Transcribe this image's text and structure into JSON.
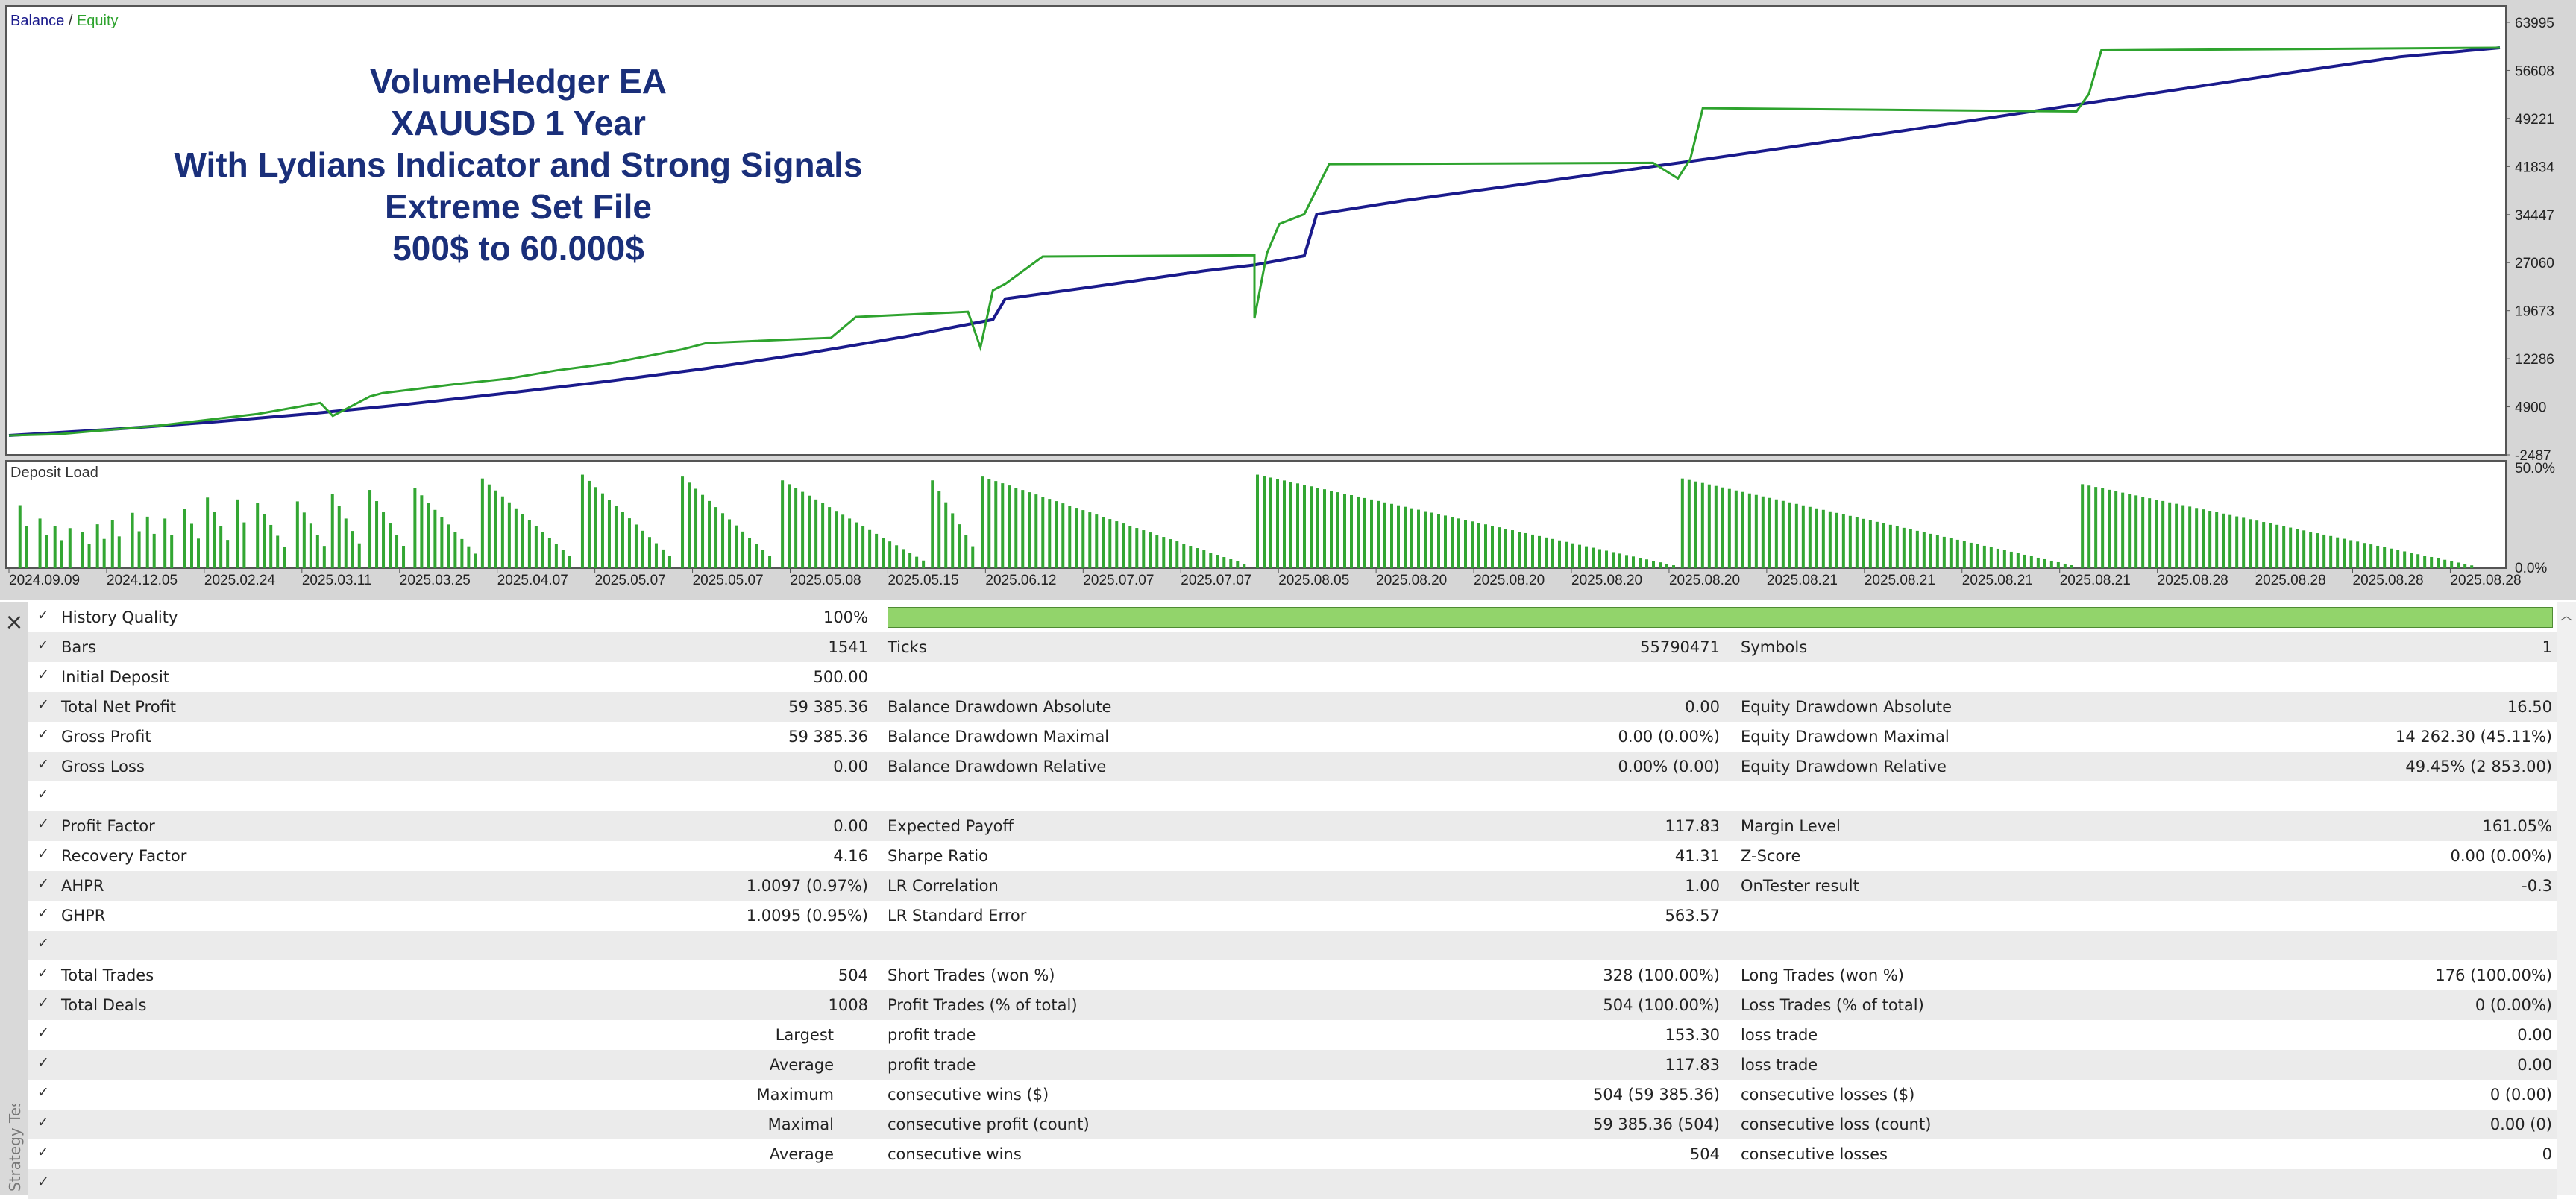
{
  "chart": {
    "legend_balance": "Balance",
    "legend_separator": " / ",
    "legend_equity": "Equity",
    "title_lines": [
      "VolumeHedger EA",
      "XAUUSD 1 Year",
      "With Lydians Indicator and Strong Signals",
      "Extreme Set File",
      "500$ to 60.000$"
    ],
    "deposit_label": "Deposit Load",
    "colors": {
      "balance": "#1a1a8c",
      "equity": "#2ea32e",
      "title": "#1a2f7a",
      "load": "#33a633"
    }
  },
  "chart_data": {
    "type": "line",
    "title": "",
    "y_ticks": [
      "63995",
      "56608",
      "49221",
      "41834",
      "34447",
      "27060",
      "19673",
      "12286",
      "4900",
      "-2487"
    ],
    "ylim": [
      -2487,
      63995
    ],
    "load_ticks": [
      "50.0%",
      "0.0%"
    ],
    "x_ticks": [
      "2024.09.09",
      "2024.12.05",
      "2025.02.24",
      "2025.03.11",
      "2025.03.25",
      "2025.04.07",
      "2025.05.07",
      "2025.05.07",
      "2025.05.08",
      "2025.05.15",
      "2025.06.12",
      "2025.07.07",
      "2025.07.07",
      "2025.08.05",
      "2025.08.20",
      "2025.08.20",
      "2025.08.20",
      "2025.08.20",
      "2025.08.21",
      "2025.08.21",
      "2025.08.21",
      "2025.08.21",
      "2025.08.28",
      "2025.08.28",
      "2025.08.28",
      "2025.08.28"
    ],
    "series": [
      {
        "name": "Balance",
        "x": [
          0,
          0.04,
          0.08,
          0.12,
          0.16,
          0.2,
          0.24,
          0.28,
          0.32,
          0.36,
          0.38,
          0.395,
          0.4,
          0.44,
          0.48,
          0.5,
          0.52,
          0.525,
          0.56,
          0.6,
          0.64,
          0.68,
          0.72,
          0.76,
          0.8,
          0.84,
          0.88,
          0.92,
          0.96,
          1.0
        ],
        "y": [
          500,
          1400,
          2500,
          3800,
          5300,
          7000,
          8800,
          10800,
          13100,
          15700,
          17200,
          18300,
          21500,
          23600,
          25800,
          26700,
          28100,
          34500,
          36600,
          38700,
          40800,
          42900,
          45100,
          47300,
          49600,
          51900,
          54200,
          56500,
          58700,
          60100
        ]
      },
      {
        "name": "Equity",
        "x": [
          0,
          0.02,
          0.06,
          0.1,
          0.125,
          0.13,
          0.145,
          0.15,
          0.18,
          0.2,
          0.22,
          0.24,
          0.27,
          0.28,
          0.33,
          0.34,
          0.385,
          0.39,
          0.395,
          0.4,
          0.415,
          0.5,
          0.5,
          0.505,
          0.51,
          0.52,
          0.53,
          0.66,
          0.67,
          0.675,
          0.68,
          0.83,
          0.835,
          0.84,
          1.0
        ],
        "y": [
          500,
          700,
          2000,
          3800,
          5500,
          3500,
          6500,
          7000,
          8400,
          9200,
          10500,
          11500,
          13700,
          14700,
          15500,
          18700,
          19500,
          14000,
          22800,
          23800,
          28000,
          28200,
          18500,
          28500,
          33000,
          34500,
          42200,
          42400,
          40000,
          43000,
          50800,
          50300,
          53000,
          59700,
          60100
        ]
      }
    ],
    "deposit_load": [
      {
        "x": 0.005,
        "h": 0.66
      },
      {
        "x": 0.013,
        "h": 0.52
      },
      {
        "x": 0.019,
        "h": 0.44
      },
      {
        "x": 0.025,
        "h": 0.42
      },
      {
        "x": 0.03,
        "h": 0.38
      },
      {
        "x": 0.036,
        "h": 0.46
      },
      {
        "x": 0.042,
        "h": 0.5
      },
      {
        "x": 0.05,
        "h": 0.58
      },
      {
        "x": 0.056,
        "h": 0.54
      },
      {
        "x": 0.063,
        "h": 0.52
      },
      {
        "x": 0.071,
        "h": 0.62
      },
      {
        "x": 0.08,
        "h": 0.74
      },
      {
        "x": 0.092,
        "h": 0.72
      },
      {
        "x": 0.1,
        "h": 0.68
      },
      {
        "x": 0.116,
        "h": 0.7
      },
      {
        "x": 0.13,
        "h": 0.78
      },
      {
        "x": 0.145,
        "h": 0.82
      },
      {
        "x": 0.163,
        "h": 0.84
      },
      {
        "x": 0.19,
        "h": 0.94
      },
      {
        "x": 0.23,
        "h": 0.98
      },
      {
        "x": 0.27,
        "h": 0.96
      },
      {
        "x": 0.31,
        "h": 0.92
      },
      {
        "x": 0.37,
        "h": 0.92
      },
      {
        "x": 0.39,
        "h": 0.96
      },
      {
        "x": 0.5,
        "h": 0.98
      },
      {
        "x": 0.67,
        "h": 0.94
      },
      {
        "x": 0.83,
        "h": 0.88
      }
    ],
    "grid": false
  },
  "report": {
    "close_glyph": "×",
    "side_label": "Strategy Tester",
    "history_quality": {
      "label": "History Quality",
      "value": "100%"
    },
    "rows": [
      {
        "c1": "Bars",
        "v1": "1541",
        "c2": "Ticks",
        "v2": "55790471",
        "c3": "Symbols",
        "v3": "1"
      },
      {
        "c1": "Initial Deposit",
        "v1": "500.00",
        "c2": "",
        "v2": "",
        "c3": "",
        "v3": ""
      },
      {
        "c1": "Total Net Profit",
        "v1": "59 385.36",
        "c2": "Balance Drawdown Absolute",
        "v2": "0.00",
        "c3": "Equity Drawdown Absolute",
        "v3": "16.50"
      },
      {
        "c1": "Gross Profit",
        "v1": "59 385.36",
        "c2": "Balance Drawdown Maximal",
        "v2": "0.00 (0.00%)",
        "c3": "Equity Drawdown Maximal",
        "v3": "14 262.30 (45.11%)"
      },
      {
        "c1": "Gross Loss",
        "v1": "0.00",
        "c2": "Balance Drawdown Relative",
        "v2": "0.00% (0.00)",
        "c3": "Equity Drawdown Relative",
        "v3": "49.45% (2 853.00)"
      },
      {
        "c1": "",
        "v1": "",
        "c2": "",
        "v2": "",
        "c3": "",
        "v3": ""
      },
      {
        "c1": "Profit Factor",
        "v1": "0.00",
        "c2": "Expected Payoff",
        "v2": "117.83",
        "c3": "Margin Level",
        "v3": "161.05%"
      },
      {
        "c1": "Recovery Factor",
        "v1": "4.16",
        "c2": "Sharpe Ratio",
        "v2": "41.31",
        "c3": "Z-Score",
        "v3": "0.00 (0.00%)"
      },
      {
        "c1": "AHPR",
        "v1": "1.0097 (0.97%)",
        "c2": "LR Correlation",
        "v2": "1.00",
        "c3": "OnTester result",
        "v3": "-0.3"
      },
      {
        "c1": "GHPR",
        "v1": "1.0095 (0.95%)",
        "c2": "LR Standard Error",
        "v2": "563.57",
        "c3": "",
        "v3": ""
      },
      {
        "c1": "",
        "v1": "",
        "c2": "",
        "v2": "",
        "c3": "",
        "v3": ""
      },
      {
        "c1": "Total Trades",
        "v1": "504",
        "c2": "Short Trades (won %)",
        "v2": "328 (100.00%)",
        "c3": "Long Trades (won %)",
        "v3": "176 (100.00%)"
      },
      {
        "c1": "Total Deals",
        "v1": "1008",
        "c2": "Profit Trades (% of total)",
        "v2": "504 (100.00%)",
        "c3": "Loss Trades (% of total)",
        "v3": "0 (0.00%)"
      },
      {
        "c1r": "Largest",
        "c2": "profit trade",
        "v2": "153.30",
        "c3": "loss trade",
        "v3": "0.00"
      },
      {
        "c1r": "Average",
        "c2": "profit trade",
        "v2": "117.83",
        "c3": "loss trade",
        "v3": "0.00"
      },
      {
        "c1r": "Maximum",
        "c2": "consecutive wins ($)",
        "v2": "504 (59 385.36)",
        "c3": "consecutive losses ($)",
        "v3": "0 (0.00)"
      },
      {
        "c1r": "Maximal",
        "c2": "consecutive profit (count)",
        "v2": "59 385.36 (504)",
        "c3": "consecutive loss (count)",
        "v3": "0.00 (0)"
      },
      {
        "c1r": "Average",
        "c2": "consecutive wins",
        "v2": "504",
        "c3": "consecutive losses",
        "v3": "0"
      },
      {
        "c1": "",
        "v1": "",
        "c2": "",
        "v2": "",
        "c3": "",
        "v3": ""
      }
    ]
  }
}
